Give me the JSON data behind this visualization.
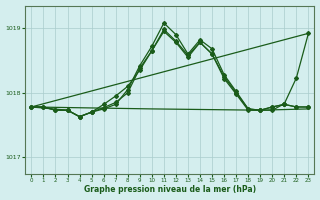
{
  "bg_color": "#d4eeee",
  "grid_color": "#aacccc",
  "line_color": "#1a5c1a",
  "title": "Graphe pression niveau de la mer (hPa)",
  "xlim": [
    -0.5,
    23.5
  ],
  "ylim": [
    1016.75,
    1019.35
  ],
  "yticks": [
    1017,
    1018,
    1019
  ],
  "xticks": [
    0,
    1,
    2,
    3,
    4,
    5,
    6,
    7,
    8,
    9,
    10,
    11,
    12,
    13,
    14,
    15,
    16,
    17,
    18,
    19,
    20,
    21,
    22,
    23
  ],
  "line1_x": [
    0,
    1,
    2,
    3,
    4,
    5,
    6,
    7,
    8,
    9,
    10,
    11,
    12,
    13,
    14,
    15,
    16,
    17,
    18,
    19,
    20,
    21,
    22,
    23
  ],
  "line1_y": [
    1017.78,
    1017.78,
    1017.73,
    1017.73,
    1017.63,
    1017.7,
    1017.75,
    1017.82,
    1018.05,
    1018.42,
    1018.72,
    1019.08,
    1018.9,
    1018.6,
    1018.82,
    1018.68,
    1018.28,
    1018.02,
    1017.75,
    1017.73,
    1017.78,
    1017.82,
    1017.78,
    1017.78
  ],
  "line2_x": [
    0,
    1,
    2,
    3,
    4,
    5,
    6,
    7,
    8,
    9,
    10,
    11,
    12,
    13,
    14,
    15,
    16,
    17,
    18,
    19,
    20,
    21,
    22,
    23
  ],
  "line2_y": [
    1017.78,
    1017.78,
    1017.73,
    1017.73,
    1017.63,
    1017.7,
    1017.77,
    1017.85,
    1018.0,
    1018.38,
    1018.65,
    1018.98,
    1018.8,
    1018.58,
    1018.78,
    1018.6,
    1018.22,
    1017.98,
    1017.73,
    1017.73,
    1017.78,
    1017.82,
    1017.78,
    1017.78
  ],
  "line3_x": [
    0,
    3,
    4,
    5,
    6,
    7,
    8,
    9,
    10,
    11,
    12,
    13,
    14,
    15,
    16,
    17,
    18,
    19,
    20,
    21,
    22,
    23
  ],
  "line3_y": [
    1017.78,
    1017.73,
    1017.63,
    1017.7,
    1017.82,
    1017.95,
    1018.1,
    1018.35,
    1018.65,
    1018.95,
    1018.78,
    1018.55,
    1018.78,
    1018.6,
    1018.25,
    1018.0,
    1017.75,
    1017.73,
    1017.73,
    1017.83,
    1018.23,
    1018.92
  ],
  "line4_x": [
    0,
    23
  ],
  "line4_y": [
    1017.78,
    1018.92
  ],
  "line5_x": [
    0,
    10,
    19,
    23
  ],
  "line5_y": [
    1017.78,
    1017.75,
    1017.73,
    1017.75
  ]
}
